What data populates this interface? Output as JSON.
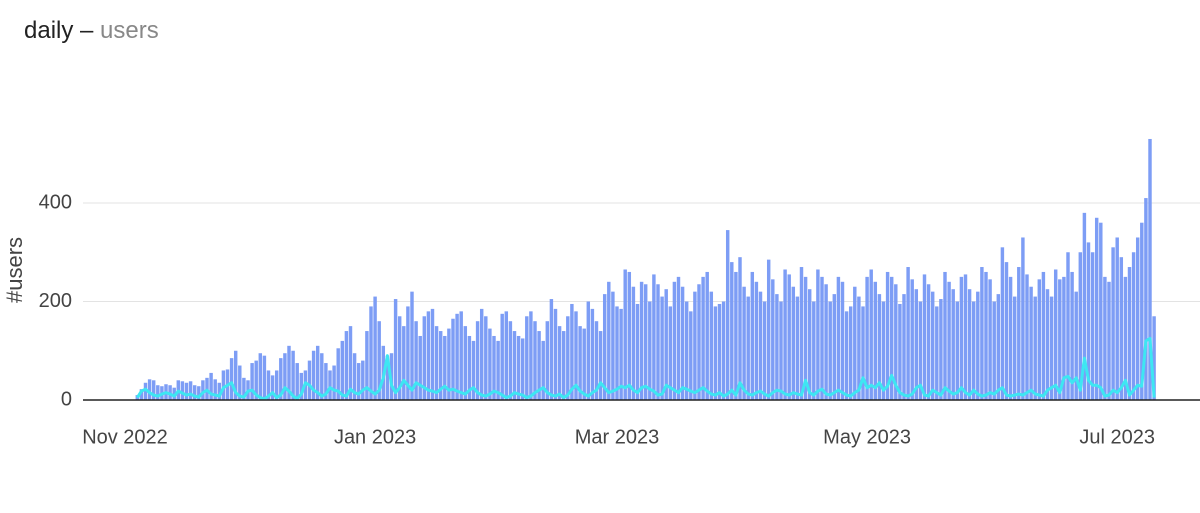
{
  "chart_data": {
    "type": "bar",
    "title": "daily –",
    "subtitle": "users",
    "y_label": "#users",
    "ylim": [
      0,
      550
    ],
    "yticks": [
      0,
      200,
      400
    ],
    "grid": true,
    "categories": [
      "Nov 2022",
      null,
      null,
      null,
      null,
      null,
      null,
      null,
      null,
      null,
      null,
      null,
      null,
      null,
      null,
      null,
      null,
      null,
      null,
      null,
      null,
      null,
      null,
      null,
      null,
      null,
      null,
      null,
      null,
      null,
      null,
      null,
      null,
      null,
      null,
      null,
      null,
      null,
      null,
      null,
      null,
      null,
      null,
      null,
      null,
      null,
      null,
      null,
      null,
      null,
      null,
      null,
      null,
      null,
      null,
      null,
      null,
      null,
      null,
      null,
      null,
      "Jan 2023",
      null,
      null,
      null,
      null,
      null,
      null,
      null,
      null,
      null,
      null,
      null,
      null,
      null,
      null,
      null,
      null,
      null,
      null,
      null,
      null,
      null,
      null,
      null,
      null,
      null,
      null,
      null,
      null,
      null,
      null,
      null,
      null,
      null,
      null,
      null,
      null,
      null,
      null,
      null,
      null,
      null,
      null,
      null,
      null,
      null,
      null,
      null,
      null,
      null,
      null,
      null,
      null,
      null,
      null,
      null,
      null,
      null,
      null,
      "Mar 2023",
      null,
      null,
      null,
      null,
      null,
      null,
      null,
      null,
      null,
      null,
      null,
      null,
      null,
      null,
      null,
      null,
      null,
      null,
      null,
      null,
      null,
      null,
      null,
      null,
      null,
      null,
      null,
      null,
      null,
      null,
      null,
      null,
      null,
      null,
      null,
      null,
      null,
      null,
      null,
      null,
      null,
      null,
      null,
      null,
      null,
      null,
      null,
      null,
      null,
      null,
      null,
      null,
      null,
      null,
      null,
      null,
      null,
      null,
      null,
      null,
      "May 2023",
      null,
      null,
      null,
      null,
      null,
      null,
      null,
      null,
      null,
      null,
      null,
      null,
      null,
      null,
      null,
      null,
      null,
      null,
      null,
      null,
      null,
      null,
      null,
      null,
      null,
      null,
      null,
      null,
      null,
      null,
      null,
      null,
      null,
      null,
      null,
      null,
      null,
      null,
      null,
      null,
      null,
      null,
      null,
      null,
      null,
      null,
      null,
      null,
      null,
      null,
      null,
      null,
      null,
      null,
      null,
      null,
      null,
      null,
      null,
      null,
      "Jul 2023",
      null,
      null,
      null,
      null,
      null,
      null,
      null,
      null,
      null
    ],
    "series": [
      {
        "type": "bar",
        "color": "#7d9df5",
        "values": [
          null,
          null,
          null,
          10,
          22,
          35,
          42,
          40,
          30,
          28,
          32,
          30,
          25,
          40,
          38,
          35,
          38,
          30,
          28,
          40,
          45,
          55,
          42,
          35,
          60,
          62,
          85,
          100,
          70,
          45,
          40,
          75,
          80,
          95,
          90,
          60,
          50,
          60,
          85,
          95,
          110,
          100,
          75,
          55,
          60,
          80,
          100,
          110,
          95,
          75,
          60,
          70,
          105,
          120,
          140,
          150,
          95,
          75,
          80,
          140,
          190,
          210,
          160,
          110,
          90,
          95,
          205,
          170,
          150,
          190,
          220,
          160,
          130,
          170,
          180,
          185,
          150,
          140,
          130,
          145,
          165,
          175,
          180,
          150,
          130,
          120,
          160,
          185,
          170,
          145,
          130,
          120,
          175,
          180,
          160,
          140,
          130,
          125,
          170,
          180,
          160,
          140,
          120,
          160,
          205,
          185,
          150,
          140,
          170,
          195,
          180,
          150,
          145,
          200,
          185,
          160,
          140,
          215,
          240,
          220,
          190,
          185,
          265,
          260,
          230,
          195,
          240,
          235,
          200,
          255,
          235,
          210,
          225,
          190,
          240,
          250,
          230,
          200,
          180,
          220,
          235,
          250,
          260,
          220,
          190,
          195,
          200,
          345,
          280,
          260,
          290,
          230,
          210,
          260,
          240,
          220,
          200,
          285,
          245,
          215,
          200,
          265,
          255,
          230,
          210,
          270,
          250,
          225,
          200,
          265,
          250,
          235,
          200,
          215,
          250,
          240,
          180,
          190,
          230,
          210,
          190,
          250,
          265,
          240,
          215,
          200,
          260,
          250,
          235,
          195,
          215,
          270,
          245,
          225,
          200,
          255,
          235,
          220,
          190,
          205,
          260,
          240,
          225,
          200,
          250,
          255,
          225,
          200,
          220,
          270,
          260,
          245,
          200,
          215,
          310,
          280,
          250,
          210,
          270,
          330,
          255,
          230,
          210,
          245,
          260,
          225,
          210,
          265,
          245,
          250,
          300,
          260,
          220,
          300,
          380,
          320,
          300,
          370,
          360,
          250,
          240,
          310,
          330,
          290,
          250,
          270,
          300,
          330,
          360,
          410,
          530,
          170
        ]
      },
      {
        "type": "line",
        "color": "#3ee6f2",
        "values": [
          null,
          null,
          null,
          5,
          18,
          22,
          15,
          10,
          8,
          12,
          15,
          12,
          8,
          18,
          14,
          10,
          12,
          8,
          6,
          15,
          20,
          12,
          10,
          8,
          25,
          30,
          35,
          15,
          8,
          6,
          18,
          20,
          10,
          5,
          2,
          8,
          15,
          5,
          10,
          25,
          18,
          8,
          3,
          12,
          35,
          30,
          20,
          15,
          8,
          12,
          25,
          20,
          18,
          10,
          8,
          22,
          15,
          12,
          20,
          25,
          18,
          12,
          20,
          45,
          90,
          30,
          15,
          25,
          40,
          30,
          20,
          35,
          30,
          25,
          20,
          18,
          15,
          22,
          28,
          20,
          22,
          18,
          15,
          12,
          20,
          25,
          15,
          10,
          8,
          12,
          18,
          15,
          10,
          5,
          8,
          15,
          12,
          10,
          5,
          8,
          15,
          20,
          25,
          15,
          10,
          8,
          12,
          5,
          10,
          22,
          30,
          18,
          12,
          8,
          15,
          20,
          35,
          25,
          15,
          18,
          22,
          28,
          25,
          30,
          20,
          15,
          25,
          28,
          22,
          18,
          10,
          12,
          30,
          25,
          20,
          15,
          25,
          22,
          18,
          15,
          20,
          25,
          18,
          12,
          10,
          15,
          8,
          12,
          20,
          10,
          35,
          20,
          12,
          10,
          15,
          18,
          12,
          8,
          15,
          20,
          18,
          12,
          10,
          15,
          12,
          10,
          40,
          15,
          10,
          18,
          22,
          12,
          10,
          15,
          20,
          15,
          10,
          8,
          15,
          20,
          45,
          25,
          30,
          25,
          35,
          20,
          28,
          50,
          30,
          15,
          10,
          8,
          12,
          25,
          30,
          10,
          8,
          20,
          15,
          10,
          25,
          18,
          12,
          15,
          25,
          15,
          10,
          20,
          12,
          8,
          10,
          15,
          12,
          20,
          25,
          10,
          8,
          10,
          12,
          10,
          15,
          20,
          12,
          10,
          8,
          20,
          25,
          30,
          15,
          45,
          48,
          35,
          45,
          20,
          85,
          40,
          30,
          30,
          25,
          8,
          10,
          20,
          15,
          25,
          40,
          10,
          20,
          30,
          28,
          120,
          125,
          5
        ]
      }
    ]
  }
}
